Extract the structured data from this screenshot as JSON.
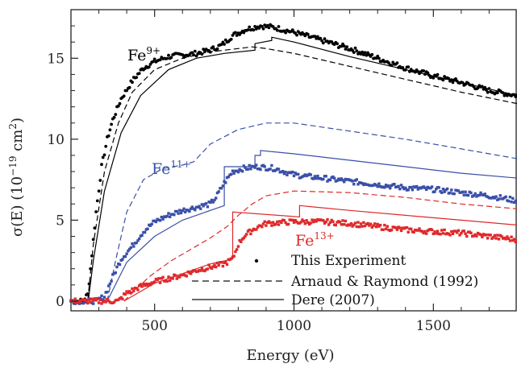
{
  "chart_data": {
    "type": "scatter",
    "title": "",
    "xlabel": "Energy (eV)",
    "ylabel": "σ(E)  (10⁻¹⁹ cm²)",
    "ylabel_parts": {
      "main": "σ(E)  (10",
      "exp": "−19",
      "unit": " cm",
      "unit_exp": "2",
      "close": ")"
    },
    "xlim": [
      200,
      1800
    ],
    "ylim": [
      -0.6,
      18
    ],
    "xticks": [
      500,
      1000,
      1500
    ],
    "yticks": [
      0,
      5,
      10,
      15
    ],
    "grid": false,
    "legend": {
      "placement": "bottom-right",
      "entries": [
        {
          "label": "This Experiment",
          "style": "dots"
        },
        {
          "label": "Arnaud & Raymond (1992)",
          "style": "dashed"
        },
        {
          "label": "Dere (2007)",
          "style": "solid"
        }
      ]
    },
    "series": [
      {
        "name": "Fe9+",
        "label_base": "Fe",
        "label_sup": "9+",
        "color": "#000000",
        "experiment": [
          [
            200,
            0.0
          ],
          [
            240,
            0.0
          ],
          [
            260,
            0.4
          ],
          [
            270,
            2.0
          ],
          [
            290,
            5.5
          ],
          [
            310,
            8.3
          ],
          [
            330,
            10.0
          ],
          [
            350,
            11.2
          ],
          [
            380,
            12.5
          ],
          [
            420,
            13.6
          ],
          [
            460,
            14.4
          ],
          [
            500,
            14.8
          ],
          [
            550,
            15.1
          ],
          [
            600,
            15.2
          ],
          [
            650,
            15.3
          ],
          [
            700,
            15.5
          ],
          [
            740,
            15.8
          ],
          [
            780,
            16.4
          ],
          [
            830,
            16.8
          ],
          [
            880,
            17.0
          ],
          [
            930,
            16.9
          ],
          [
            1000,
            16.6
          ],
          [
            1100,
            16.1
          ],
          [
            1200,
            15.6
          ],
          [
            1300,
            15.0
          ],
          [
            1400,
            14.4
          ],
          [
            1500,
            13.9
          ],
          [
            1600,
            13.5
          ],
          [
            1700,
            13.0
          ],
          [
            1800,
            12.7
          ]
        ],
        "arnaud_raymond": [
          [
            200,
            0.0
          ],
          [
            260,
            0.0
          ],
          [
            280,
            3.5
          ],
          [
            320,
            8.0
          ],
          [
            370,
            11.0
          ],
          [
            420,
            12.9
          ],
          [
            500,
            14.3
          ],
          [
            600,
            15.0
          ],
          [
            700,
            15.4
          ],
          [
            800,
            15.6
          ],
          [
            850,
            15.7
          ],
          [
            900,
            15.6
          ],
          [
            1000,
            15.3
          ],
          [
            1200,
            14.5
          ],
          [
            1400,
            13.7
          ],
          [
            1600,
            12.9
          ],
          [
            1800,
            12.2
          ]
        ],
        "dere": [
          [
            200,
            0.0
          ],
          [
            262,
            0.0
          ],
          [
            280,
            2.5
          ],
          [
            320,
            6.8
          ],
          [
            380,
            10.4
          ],
          [
            450,
            12.7
          ],
          [
            550,
            14.3
          ],
          [
            650,
            15.0
          ],
          [
            750,
            15.3
          ],
          [
            860,
            15.5
          ],
          [
            860,
            15.9
          ],
          [
            890,
            16.0
          ],
          [
            920,
            16.1
          ],
          [
            920,
            16.3
          ],
          [
            1000,
            16.0
          ],
          [
            1200,
            15.1
          ],
          [
            1400,
            14.3
          ],
          [
            1600,
            13.5
          ],
          [
            1800,
            12.7
          ]
        ]
      },
      {
        "name": "Fe11+",
        "label_base": "Fe",
        "label_sup": "11+",
        "color": "#3a4fa8",
        "experiment": [
          [
            200,
            0.0
          ],
          [
            290,
            0.0
          ],
          [
            320,
            0.3
          ],
          [
            350,
            1.5
          ],
          [
            380,
            2.6
          ],
          [
            420,
            3.4
          ],
          [
            460,
            4.3
          ],
          [
            500,
            4.9
          ],
          [
            550,
            5.3
          ],
          [
            600,
            5.6
          ],
          [
            650,
            5.8
          ],
          [
            700,
            6.0
          ],
          [
            720,
            6.4
          ],
          [
            750,
            7.3
          ],
          [
            780,
            8.0
          ],
          [
            820,
            8.2
          ],
          [
            870,
            8.3
          ],
          [
            930,
            8.2
          ],
          [
            1000,
            7.8
          ],
          [
            1100,
            7.6
          ],
          [
            1200,
            7.4
          ],
          [
            1300,
            7.2
          ],
          [
            1400,
            7.0
          ],
          [
            1500,
            6.9
          ],
          [
            1600,
            6.7
          ],
          [
            1700,
            6.5
          ],
          [
            1800,
            6.2
          ]
        ],
        "arnaud_raymond": [
          [
            330,
            0.0
          ],
          [
            360,
            2.5
          ],
          [
            400,
            5.5
          ],
          [
            460,
            7.5
          ],
          [
            530,
            8.2
          ],
          [
            600,
            8.4
          ],
          [
            640,
            8.6
          ],
          [
            700,
            9.7
          ],
          [
            800,
            10.6
          ],
          [
            900,
            11.0
          ],
          [
            1000,
            11.0
          ],
          [
            1200,
            10.5
          ],
          [
            1400,
            10.0
          ],
          [
            1600,
            9.4
          ],
          [
            1800,
            8.8
          ]
        ],
        "dere": [
          [
            330,
            0.0
          ],
          [
            400,
            2.4
          ],
          [
            500,
            4.0
          ],
          [
            600,
            5.0
          ],
          [
            700,
            5.6
          ],
          [
            750,
            5.9
          ],
          [
            750,
            8.3
          ],
          [
            860,
            8.3
          ],
          [
            860,
            9.0
          ],
          [
            880,
            9.0
          ],
          [
            880,
            9.3
          ],
          [
            1000,
            9.1
          ],
          [
            1200,
            8.7
          ],
          [
            1400,
            8.3
          ],
          [
            1600,
            7.9
          ],
          [
            1800,
            7.6
          ]
        ]
      },
      {
        "name": "Fe13+",
        "label_base": "Fe",
        "label_sup": "13+",
        "color": "#e0282a",
        "experiment": [
          [
            200,
            0.0
          ],
          [
            370,
            0.0
          ],
          [
            400,
            0.5
          ],
          [
            450,
            0.9
          ],
          [
            500,
            1.2
          ],
          [
            550,
            1.4
          ],
          [
            600,
            1.6
          ],
          [
            650,
            1.9
          ],
          [
            700,
            2.1
          ],
          [
            750,
            2.3
          ],
          [
            780,
            2.6
          ],
          [
            800,
            3.5
          ],
          [
            820,
            4.0
          ],
          [
            860,
            4.5
          ],
          [
            900,
            4.8
          ],
          [
            1000,
            4.9
          ],
          [
            1100,
            4.9
          ],
          [
            1200,
            4.8
          ],
          [
            1300,
            4.6
          ],
          [
            1400,
            4.4
          ],
          [
            1500,
            4.3
          ],
          [
            1600,
            4.2
          ],
          [
            1700,
            4.0
          ],
          [
            1800,
            3.8
          ]
        ],
        "arnaud_raymond": [
          [
            390,
            0.0
          ],
          [
            420,
            0.5
          ],
          [
            480,
            1.5
          ],
          [
            560,
            2.5
          ],
          [
            640,
            3.3
          ],
          [
            700,
            3.9
          ],
          [
            760,
            4.6
          ],
          [
            800,
            5.3
          ],
          [
            850,
            6.0
          ],
          [
            900,
            6.5
          ],
          [
            1000,
            6.8
          ],
          [
            1200,
            6.7
          ],
          [
            1400,
            6.4
          ],
          [
            1600,
            6.0
          ],
          [
            1800,
            5.7
          ]
        ],
        "dere": [
          [
            390,
            0.0
          ],
          [
            500,
            1.1
          ],
          [
            600,
            1.7
          ],
          [
            700,
            2.3
          ],
          [
            780,
            2.6
          ],
          [
            780,
            5.5
          ],
          [
            1020,
            5.2
          ],
          [
            1020,
            5.9
          ],
          [
            1200,
            5.6
          ],
          [
            1400,
            5.3
          ],
          [
            1600,
            5.0
          ],
          [
            1800,
            4.7
          ]
        ]
      }
    ]
  }
}
